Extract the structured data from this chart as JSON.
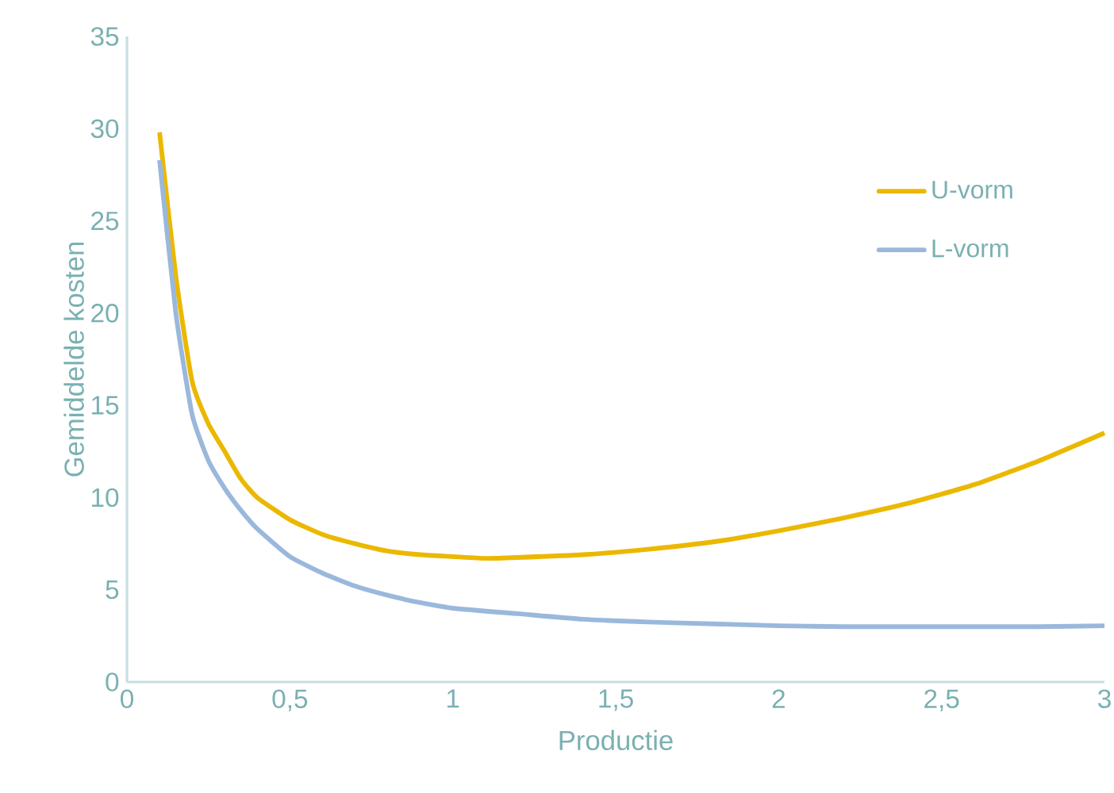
{
  "chart_data": {
    "type": "line",
    "xlabel": "Productie",
    "ylabel": "Gemiddelde kosten",
    "xlim": [
      0,
      3
    ],
    "ylim": [
      0,
      35
    ],
    "xticks": [
      0,
      {
        "value": 0.5,
        "label": "0,5"
      },
      1,
      {
        "value": 1.5,
        "label": "1,5"
      },
      2,
      {
        "value": 2.5,
        "label": "2,5"
      },
      3
    ],
    "yticks": [
      0,
      5,
      10,
      15,
      20,
      25,
      30,
      35
    ],
    "grid": false,
    "legend": "right",
    "marker": "none",
    "line_style": "solid",
    "series": [
      {
        "name": "U-vorm",
        "color": "#ebb800",
        "x": [
          0.1,
          0.15,
          0.2,
          0.25,
          0.3,
          0.35,
          0.4,
          0.5,
          0.6,
          0.7,
          0.8,
          0.9,
          1.0,
          1.1,
          1.2,
          1.4,
          1.6,
          1.8,
          2.0,
          2.2,
          2.4,
          2.6,
          2.8,
          3.0
        ],
        "values": [
          29.8,
          22,
          16.3,
          14,
          12.5,
          11,
          10,
          8.8,
          8,
          7.5,
          7.1,
          6.9,
          6.8,
          6.7,
          6.75,
          6.9,
          7.2,
          7.6,
          8.2,
          8.9,
          9.7,
          10.7,
          12,
          13.5
        ]
      },
      {
        "name": "L-vorm",
        "color": "#9ab8dc",
        "x": [
          0.1,
          0.15,
          0.2,
          0.25,
          0.3,
          0.35,
          0.4,
          0.5,
          0.6,
          0.7,
          0.8,
          0.9,
          1.0,
          1.2,
          1.4,
          1.6,
          1.8,
          2.0,
          2.2,
          2.4,
          2.6,
          2.8,
          3.0
        ],
        "values": [
          28.3,
          20,
          14.5,
          12,
          10.5,
          9.3,
          8.3,
          6.8,
          5.9,
          5.2,
          4.7,
          4.3,
          4.0,
          3.7,
          3.4,
          3.25,
          3.15,
          3.05,
          3.0,
          3.0,
          3.0,
          3.0,
          3.05
        ]
      }
    ]
  }
}
